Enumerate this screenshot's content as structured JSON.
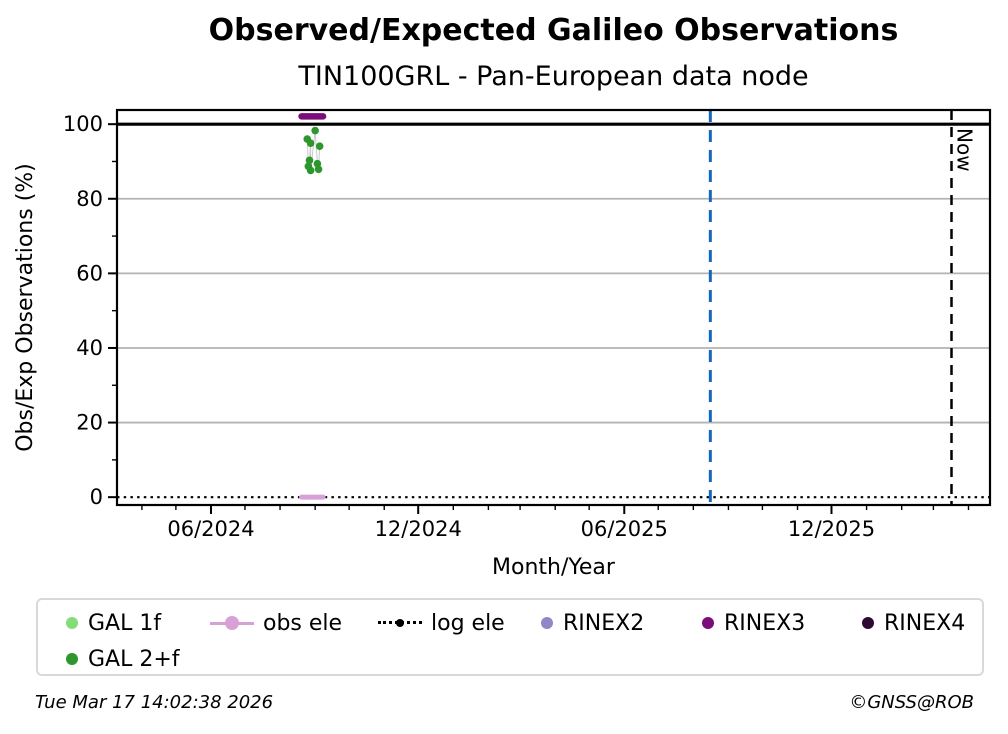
{
  "footer": {
    "timestamp": "Tue Mar 17 14:02:38 2026",
    "credit": "©GNSS@ROB"
  },
  "legend": {
    "items": [
      {
        "label": "GAL 1f",
        "marker": "dot",
        "color": "#82dc78"
      },
      {
        "label": "obs ele",
        "marker": "line-dot",
        "color": "#d7a0d7"
      },
      {
        "label": "log ele",
        "marker": "dotted-line-dot",
        "color": "#000000"
      },
      {
        "label": "RINEX2",
        "marker": "dot",
        "color": "#8f87c8"
      },
      {
        "label": "RINEX3",
        "marker": "dot",
        "color": "#7b0d7b"
      },
      {
        "label": "RINEX4",
        "marker": "dot",
        "color": "#2d0a32"
      },
      {
        "label": "GAL 2+f",
        "marker": "dot",
        "color": "#2d962d"
      }
    ]
  },
  "chart_data": {
    "type": "scatter",
    "title": "Observed/Expected Galileo Observations",
    "subtitle": "TIN100GRL - Pan-European data node",
    "xlabel": "Month/Year",
    "ylabel": "Obs/Exp Observations (%)",
    "xlim": [
      "2024-03-10",
      "2026-04-20"
    ],
    "ylim": [
      -2.1,
      103.8
    ],
    "x_ticks": [
      {
        "date": "2024-06-01",
        "label": "06/2024"
      },
      {
        "date": "2024-12-01",
        "label": "12/2024"
      },
      {
        "date": "2025-06-01",
        "label": "06/2025"
      },
      {
        "date": "2025-12-01",
        "label": "12/2025"
      }
    ],
    "x_minor": "monthly",
    "y_ticks": [
      0,
      20,
      40,
      60,
      80,
      100
    ],
    "y_minor_step": 10,
    "grid": true,
    "grid_color": "#b3b3b3",
    "legend_position": "bottom",
    "reference_lines": [
      {
        "type": "hline",
        "y": 100,
        "style": "solid",
        "width": 3.2,
        "color": "#000000",
        "name": "expected-100-line"
      },
      {
        "type": "hline",
        "y": 0,
        "style": "dotted",
        "width": 2.2,
        "color": "#000000",
        "name": "log-ele-zero-line"
      },
      {
        "type": "vline",
        "date": "2025-08-16",
        "style": "dashed",
        "width": 3,
        "color": "#1666bd",
        "name": "blue-reference-line"
      },
      {
        "type": "vline",
        "date": "2026-03-17",
        "style": "dashed",
        "width": 2.5,
        "color": "#000000",
        "label": "Now",
        "name": "now-line"
      }
    ],
    "series": [
      {
        "name": "GAL 1f",
        "type": "scatter",
        "color": "#82dc78",
        "points": []
      },
      {
        "name": "GAL 2+f",
        "type": "scatter",
        "color": "#2d962d",
        "connect": true,
        "points": [
          {
            "date": "2024-09-01",
            "value": 98.3
          },
          {
            "date": "2024-08-25",
            "value": 96.0
          },
          {
            "date": "2024-08-28",
            "value": 94.9
          },
          {
            "date": "2024-09-05",
            "value": 94.1
          },
          {
            "date": "2024-08-27",
            "value": 90.3
          },
          {
            "date": "2024-09-03",
            "value": 89.4
          },
          {
            "date": "2024-08-26",
            "value": 88.7
          },
          {
            "date": "2024-08-28",
            "value": 87.6
          },
          {
            "date": "2024-09-04",
            "value": 87.9
          }
        ]
      },
      {
        "name": "obs ele",
        "type": "bar",
        "color": "#d7a0d7",
        "y": 0,
        "start": "2024-08-20",
        "end": "2024-09-08",
        "height": 5
      },
      {
        "name": "log ele",
        "type": "reference",
        "color": "#000000",
        "y": 0
      },
      {
        "name": "RINEX2",
        "type": "scatter",
        "color": "#8f87c8",
        "points": []
      },
      {
        "name": "RINEX3",
        "type": "bar",
        "color": "#7b0d7b",
        "y": 102.1,
        "start": "2024-08-20",
        "end": "2024-09-08",
        "height": 6.5
      },
      {
        "name": "RINEX4",
        "type": "scatter",
        "color": "#2d0a32",
        "points": []
      }
    ]
  }
}
